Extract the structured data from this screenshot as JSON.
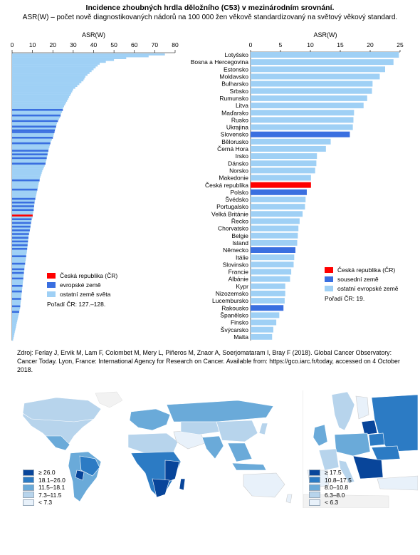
{
  "title": "Incidence zhoubných hrdla děložního (C53) v mezinárodním srovnání.",
  "subtitle": "ASR(W) – počet nově diagnostikovaných nádorů na 100 000 žen věkově standardizovaný na světový věkový standard.",
  "colors": {
    "cz": "#ff0000",
    "europe": "#3a6fe0",
    "neighbor": "#3a6fe0",
    "other": "#9fd0f5"
  },
  "chart_data": [
    {
      "type": "bar",
      "orientation": "horizontal",
      "xlabel": "ASR(W)",
      "xlim": [
        0,
        80
      ],
      "xticks": [
        0,
        10,
        20,
        30,
        40,
        50,
        60,
        70,
        80
      ],
      "bars": [
        {
          "v": 75,
          "c": "other"
        },
        {
          "v": 67,
          "c": "other"
        },
        {
          "v": 56,
          "c": "other"
        },
        {
          "v": 50,
          "c": "other"
        },
        {
          "v": 46,
          "c": "other"
        },
        {
          "v": 43,
          "c": "other"
        },
        {
          "v": 42,
          "c": "other"
        },
        {
          "v": 41,
          "c": "other"
        },
        {
          "v": 40,
          "c": "other"
        },
        {
          "v": 39,
          "c": "other"
        },
        {
          "v": 38,
          "c": "other"
        },
        {
          "v": 37,
          "c": "other"
        },
        {
          "v": 36,
          "c": "other"
        },
        {
          "v": 35.5,
          "c": "other"
        },
        {
          "v": 35,
          "c": "other"
        },
        {
          "v": 34,
          "c": "other"
        },
        {
          "v": 33,
          "c": "other"
        },
        {
          "v": 32,
          "c": "other"
        },
        {
          "v": 31,
          "c": "other"
        },
        {
          "v": 30,
          "c": "other"
        },
        {
          "v": 29.5,
          "c": "other"
        },
        {
          "v": 29,
          "c": "other"
        },
        {
          "v": 28.5,
          "c": "other"
        },
        {
          "v": 28,
          "c": "other"
        },
        {
          "v": 27.5,
          "c": "other"
        },
        {
          "v": 27,
          "c": "other"
        },
        {
          "v": 26.5,
          "c": "other"
        },
        {
          "v": 26,
          "c": "other"
        },
        {
          "v": 25.5,
          "c": "other"
        },
        {
          "v": 25,
          "c": "other"
        },
        {
          "v": 24.9,
          "c": "europe"
        },
        {
          "v": 24.5,
          "c": "other"
        },
        {
          "v": 24,
          "c": "other"
        },
        {
          "v": 23.8,
          "c": "europe"
        },
        {
          "v": 23.5,
          "c": "other"
        },
        {
          "v": 23,
          "c": "other"
        },
        {
          "v": 22.5,
          "c": "europe"
        },
        {
          "v": 22,
          "c": "other"
        },
        {
          "v": 21.8,
          "c": "other"
        },
        {
          "v": 21.6,
          "c": "europe"
        },
        {
          "v": 21.3,
          "c": "other"
        },
        {
          "v": 21,
          "c": "europe"
        },
        {
          "v": 20.8,
          "c": "europe"
        },
        {
          "v": 20.5,
          "c": "other"
        },
        {
          "v": 20.3,
          "c": "other"
        },
        {
          "v": 20,
          "c": "europe"
        },
        {
          "v": 19.5,
          "c": "other"
        },
        {
          "v": 19,
          "c": "other"
        },
        {
          "v": 18.8,
          "c": "europe"
        },
        {
          "v": 18.5,
          "c": "other"
        },
        {
          "v": 18.3,
          "c": "other"
        },
        {
          "v": 18,
          "c": "other"
        },
        {
          "v": 17.8,
          "c": "europe"
        },
        {
          "v": 17.6,
          "c": "other"
        },
        {
          "v": 17.4,
          "c": "europe"
        },
        {
          "v": 17.2,
          "c": "other"
        },
        {
          "v": 17,
          "c": "europe"
        },
        {
          "v": 16.8,
          "c": "other"
        },
        {
          "v": 16.6,
          "c": "other"
        },
        {
          "v": 16.4,
          "c": "europe"
        },
        {
          "v": 16,
          "c": "other"
        },
        {
          "v": 15.6,
          "c": "other"
        },
        {
          "v": 15.2,
          "c": "other"
        },
        {
          "v": 14.8,
          "c": "other"
        },
        {
          "v": 14.5,
          "c": "other"
        },
        {
          "v": 14.2,
          "c": "other"
        },
        {
          "v": 13.9,
          "c": "other"
        },
        {
          "v": 13.6,
          "c": "other"
        },
        {
          "v": 13.5,
          "c": "europe"
        },
        {
          "v": 13.2,
          "c": "other"
        },
        {
          "v": 13,
          "c": "other"
        },
        {
          "v": 12.8,
          "c": "other"
        },
        {
          "v": 12.6,
          "c": "other"
        },
        {
          "v": 12.4,
          "c": "europe"
        },
        {
          "v": 12.2,
          "c": "other"
        },
        {
          "v": 12,
          "c": "other"
        },
        {
          "v": 11.8,
          "c": "other"
        },
        {
          "v": 11.6,
          "c": "other"
        },
        {
          "v": 11.4,
          "c": "europe"
        },
        {
          "v": 11.2,
          "c": "other"
        },
        {
          "v": 11,
          "c": "europe"
        },
        {
          "v": 10.9,
          "c": "other"
        },
        {
          "v": 10.8,
          "c": "europe"
        },
        {
          "v": 10.7,
          "c": "other"
        },
        {
          "v": 10.6,
          "c": "europe"
        },
        {
          "v": 10.4,
          "c": "other"
        },
        {
          "v": 10.2,
          "c": "other"
        },
        {
          "v": 10.1,
          "c": "cz"
        },
        {
          "v": 10,
          "c": "other"
        },
        {
          "v": 9.6,
          "c": "europe"
        },
        {
          "v": 9.5,
          "c": "other"
        },
        {
          "v": 9.3,
          "c": "europe"
        },
        {
          "v": 9.1,
          "c": "other"
        },
        {
          "v": 9,
          "c": "europe"
        },
        {
          "v": 8.9,
          "c": "other"
        },
        {
          "v": 8.7,
          "c": "europe"
        },
        {
          "v": 8.5,
          "c": "other"
        },
        {
          "v": 8.3,
          "c": "europe"
        },
        {
          "v": 8.1,
          "c": "other"
        },
        {
          "v": 8,
          "c": "europe"
        },
        {
          "v": 7.9,
          "c": "other"
        },
        {
          "v": 7.8,
          "c": "europe"
        },
        {
          "v": 7.7,
          "c": "other"
        },
        {
          "v": 7.6,
          "c": "europe"
        },
        {
          "v": 7.5,
          "c": "other"
        },
        {
          "v": 7.4,
          "c": "europe"
        },
        {
          "v": 7.3,
          "c": "other"
        },
        {
          "v": 7.2,
          "c": "other"
        },
        {
          "v": 7,
          "c": "other"
        },
        {
          "v": 6.9,
          "c": "europe"
        },
        {
          "v": 6.8,
          "c": "other"
        },
        {
          "v": 6.7,
          "c": "other"
        },
        {
          "v": 6.5,
          "c": "other"
        },
        {
          "v": 6.4,
          "c": "europe"
        },
        {
          "v": 6.2,
          "c": "other"
        },
        {
          "v": 6.1,
          "c": "other"
        },
        {
          "v": 6,
          "c": "europe"
        },
        {
          "v": 5.9,
          "c": "other"
        },
        {
          "v": 5.8,
          "c": "europe"
        },
        {
          "v": 5.7,
          "c": "other"
        },
        {
          "v": 5.6,
          "c": "other"
        },
        {
          "v": 5.5,
          "c": "europe"
        },
        {
          "v": 5.4,
          "c": "other"
        },
        {
          "v": 5.3,
          "c": "other"
        },
        {
          "v": 5.2,
          "c": "other"
        },
        {
          "v": 5.1,
          "c": "europe"
        },
        {
          "v": 5,
          "c": "other"
        },
        {
          "v": 4.9,
          "c": "other"
        },
        {
          "v": 4.8,
          "c": "europe"
        },
        {
          "v": 4.7,
          "c": "other"
        },
        {
          "v": 4.6,
          "c": "other"
        },
        {
          "v": 4.5,
          "c": "other"
        },
        {
          "v": 4.4,
          "c": "europe"
        },
        {
          "v": 4.3,
          "c": "other"
        },
        {
          "v": 4.2,
          "c": "other"
        },
        {
          "v": 4.1,
          "c": "other"
        },
        {
          "v": 4,
          "c": "europe"
        },
        {
          "v": 3.9,
          "c": "other"
        },
        {
          "v": 3.7,
          "c": "other"
        },
        {
          "v": 3.5,
          "c": "europe"
        },
        {
          "v": 3.3,
          "c": "other"
        },
        {
          "v": 3.1,
          "c": "other"
        },
        {
          "v": 2.9,
          "c": "other"
        },
        {
          "v": 2.7,
          "c": "other"
        },
        {
          "v": 2.5,
          "c": "other"
        },
        {
          "v": 2.3,
          "c": "other"
        },
        {
          "v": 2.1,
          "c": "other"
        },
        {
          "v": 1.9,
          "c": "other"
        },
        {
          "v": 1.7,
          "c": "other"
        },
        {
          "v": 1.5,
          "c": "other"
        },
        {
          "v": 1.3,
          "c": "other"
        },
        {
          "v": 1.1,
          "c": "other"
        },
        {
          "v": 0.9,
          "c": "other"
        },
        {
          "v": 0.7,
          "c": "other"
        },
        {
          "v": 0.5,
          "c": "other"
        }
      ],
      "legend": [
        {
          "label": "Česká republika (ČR)",
          "c": "cz"
        },
        {
          "label": "evropské země",
          "c": "europe"
        },
        {
          "label": "ostatní země světa",
          "c": "other"
        }
      ],
      "note": "Pořadí ČR: 127.–128."
    },
    {
      "type": "bar",
      "orientation": "horizontal",
      "xlabel": "ASR(W)",
      "xlim": [
        0,
        25
      ],
      "xticks": [
        0,
        5,
        10,
        15,
        20,
        25
      ],
      "categories": [
        "Lotyšsko",
        "Bosna a Hercegovina",
        "Estonsko",
        "Moldavsko",
        "Bulharsko",
        "Srbsko",
        "Rumunsko",
        "Litva",
        "Maďarsko",
        "Rusko",
        "Ukrajina",
        "Slovensko",
        "Bělorusko",
        "Černá Hora",
        "Irsko",
        "Dánsko",
        "Norsko",
        "Makedonie",
        "Česká republika",
        "Polsko",
        "Švédsko",
        "Portugalsko",
        "Velká Británie",
        "Řecko",
        "Chorvatsko",
        "Belgie",
        "Island",
        "Německo",
        "Itálie",
        "Slovinsko",
        "Francie",
        "Albánie",
        "Kypr",
        "Nizozemsko",
        "Lucembursko",
        "Rakousko",
        "Španělsko",
        "Finsko",
        "Švýcarsko",
        "Malta"
      ],
      "values": [
        24.8,
        23.9,
        22.5,
        21.6,
        20.4,
        20.3,
        19.5,
        18.9,
        17.3,
        17.2,
        17.1,
        16.6,
        13.4,
        12.6,
        11.1,
        11.0,
        10.8,
        10.1,
        10.1,
        9.4,
        9.2,
        9.1,
        8.7,
        8.2,
        8.0,
        7.9,
        7.8,
        7.5,
        7.3,
        7.2,
        6.8,
        6.6,
        5.8,
        5.8,
        5.7,
        5.5,
        4.8,
        4.3,
        3.8,
        3.6
      ],
      "classes": [
        "other",
        "other",
        "other",
        "other",
        "other",
        "other",
        "other",
        "other",
        "other",
        "other",
        "other",
        "neighbor",
        "other",
        "other",
        "other",
        "other",
        "other",
        "other",
        "cz",
        "neighbor",
        "other",
        "other",
        "other",
        "other",
        "other",
        "other",
        "other",
        "neighbor",
        "other",
        "other",
        "other",
        "other",
        "other",
        "other",
        "other",
        "neighbor",
        "other",
        "other",
        "other",
        "other"
      ],
      "legend": [
        {
          "label": "Česká republika (ČR)",
          "c": "cz"
        },
        {
          "label": "sousední země",
          "c": "neighbor"
        },
        {
          "label": "ostatní evropské země",
          "c": "other"
        }
      ],
      "note": "Pořadí ČR: 19."
    }
  ],
  "source": "Zdroj: Ferlay J, Ervik M, Lam F, Colombet M, Mery L, Piñeros M, Znaor A, Soerjomataram I, Bray F (2018). Global Cancer Observatory: Cancer Today. Lyon, France: International Agency for Research on Cancer. Available from: https://gco.iarc.fr/today, accessed on 4 October 2018.",
  "maps": {
    "world": {
      "legend": [
        {
          "label": "≥ 26.0",
          "color": "#08459a"
        },
        {
          "label": "18.1–26.0",
          "color": "#2c7bc4"
        },
        {
          "label": "11.5–18.1",
          "color": "#6aaad9"
        },
        {
          "label": "7.3–11.5",
          "color": "#b7d4ec"
        },
        {
          "label": "< 7.3",
          "color": "#e8f1fa"
        }
      ]
    },
    "europe": {
      "legend": [
        {
          "label": "≥ 17.5",
          "color": "#08459a"
        },
        {
          "label": "10.8–17.5",
          "color": "#2c7bc4"
        },
        {
          "label": "8.0–10.8",
          "color": "#6aaad9"
        },
        {
          "label": "6.3–8.0",
          "color": "#b7d4ec"
        },
        {
          "label": "< 6.3",
          "color": "#e8f1fa"
        }
      ]
    }
  }
}
